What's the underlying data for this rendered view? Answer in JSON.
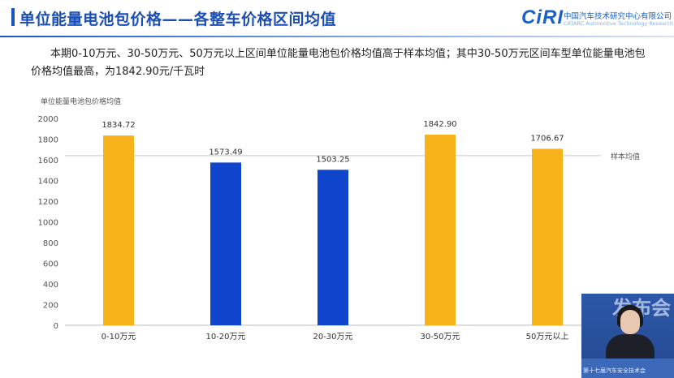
{
  "header": {
    "title": "单位能量电池包价格——各整车价格区间均值",
    "logo_mark": "CiRI",
    "logo_org": "中国汽车技术研究中心有限公司",
    "logo_eng": "CATARC Automotive Technology Research Institute"
  },
  "summary": "本期0-10万元、30-50万元、50万元以上区间单位能量电池包价格均值高于样本均值；其中30-50万元区间车型单位能量电池包价格均值最高，为1842.90元/千瓦时",
  "inset": {
    "banner": "发布会",
    "caption": "第十七届汽车安全技术会"
  },
  "colors": {
    "above_average": "#f6b31a",
    "below_average": "#0f45cc",
    "title": "#1c4fb4",
    "reference_line": "#c8c8c8"
  },
  "chart_data": {
    "type": "bar",
    "ylabel": "单位能量电池包价格均值",
    "categories": [
      "0-10万元",
      "10-20万元",
      "20-30万元",
      "30-50万元",
      "50万元以上"
    ],
    "values": [
      1834.72,
      1573.49,
      1503.25,
      1842.9,
      1706.67
    ],
    "value_labels": [
      "1834.72",
      "1573.49",
      "1503.25",
      "1842.90",
      "1706.67"
    ],
    "bar_colors": [
      "#f6b31a",
      "#0f45cc",
      "#0f45cc",
      "#f6b31a",
      "#f6b31a"
    ],
    "ylim": [
      0,
      2000
    ],
    "yticks": [
      0,
      200,
      400,
      600,
      800,
      1000,
      1200,
      1400,
      1600,
      1800,
      2000
    ],
    "reference_line": {
      "label": "样本均值",
      "value": 1640
    },
    "grid": false,
    "legend": "none"
  }
}
